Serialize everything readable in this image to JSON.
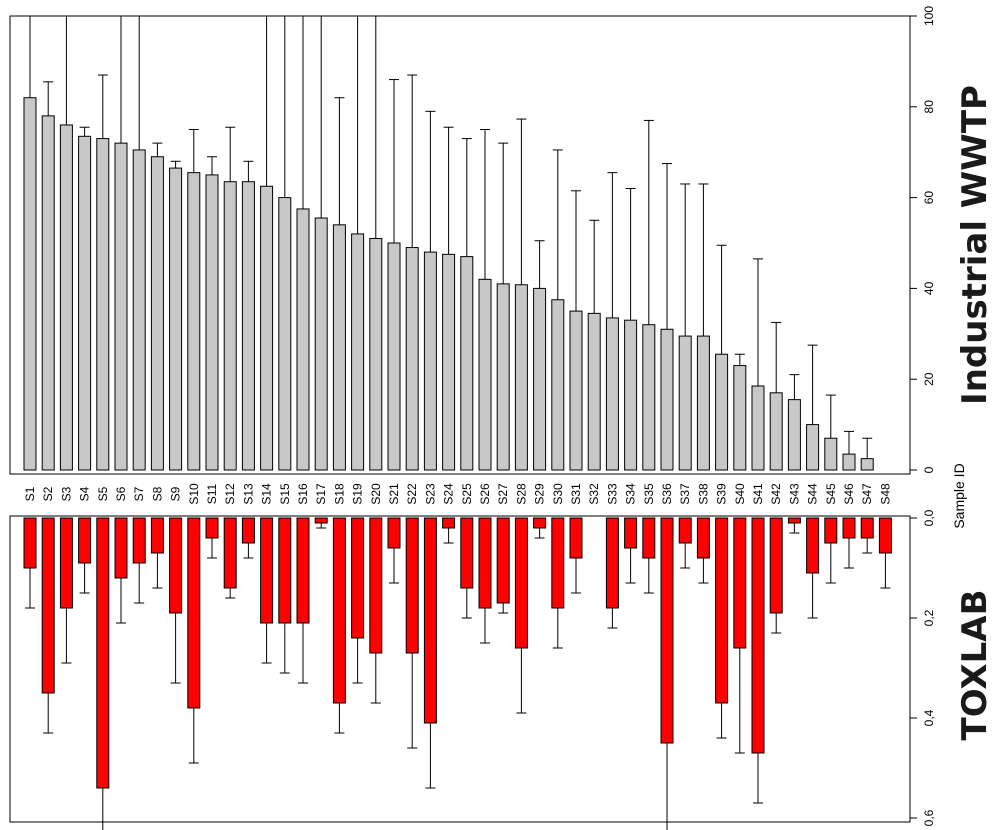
{
  "chart_data": [
    {
      "type": "bar",
      "title": "Industrial WWTP",
      "xlabel": "Sample ID",
      "ylabel": "",
      "ylim": [
        0,
        100
      ],
      "yticks": [
        "0",
        "20",
        "40",
        "60",
        "80",
        "100"
      ],
      "categories": [
        "S1",
        "S2",
        "S3",
        "S4",
        "S5",
        "S6",
        "S7",
        "S8",
        "S9",
        "S10",
        "S11",
        "S12",
        "S13",
        "S14",
        "S15",
        "S16",
        "S17",
        "S18",
        "S19",
        "S20",
        "S21",
        "S22",
        "S23",
        "S24",
        "S25",
        "S26",
        "S27",
        "S28",
        "S29",
        "S30",
        "S31",
        "S32",
        "S33",
        "S34",
        "S35",
        "S36",
        "S37",
        "S38",
        "S39",
        "S40",
        "S41",
        "S42",
        "S43",
        "S44",
        "S45",
        "S46",
        "S47",
        "S48"
      ],
      "values": [
        82,
        78,
        76,
        73.5,
        73,
        72,
        70.5,
        69,
        66.5,
        65.5,
        65,
        63.5,
        63.5,
        62.5,
        60,
        57.5,
        55.5,
        54,
        52,
        51,
        50,
        49,
        48,
        47.5,
        47,
        42,
        41,
        40.8,
        40,
        37.5,
        35,
        34.5,
        33.5,
        33,
        32,
        31,
        29.5,
        29.5,
        25.5,
        23,
        18.5,
        17,
        15.5,
        10,
        7,
        3.5,
        2.5,
        0
      ],
      "error": [
        38,
        7.5,
        40,
        2,
        14,
        36,
        40,
        3,
        1.5,
        9.5,
        4,
        12,
        4.5,
        38,
        40,
        43,
        45,
        28,
        48,
        49,
        36,
        38,
        31,
        28,
        26,
        33,
        31,
        36.5,
        10.5,
        33,
        26.5,
        20.5,
        32,
        29,
        45,
        36.5,
        33.5,
        33.5,
        24,
        2.5,
        28,
        15.5,
        5.5,
        17.5,
        9.5,
        5,
        4.5,
        0
      ],
      "bar_color": "#c8c8c8"
    },
    {
      "type": "bar",
      "title": "TOXLAB",
      "xlabel": "",
      "ylabel": "",
      "ylim": [
        0,
        0.7
      ],
      "yticks": [
        "0,0",
        "0,2",
        "0,4",
        "0,6"
      ],
      "categories": [
        "S1",
        "S2",
        "S3",
        "S4",
        "S5",
        "S6",
        "S7",
        "S8",
        "S9",
        "S10",
        "S11",
        "S12",
        "S13",
        "S14",
        "S15",
        "S16",
        "S17",
        "S18",
        "S19",
        "S20",
        "S21",
        "S22",
        "S23",
        "S24",
        "S25",
        "S26",
        "S27",
        "S28",
        "S29",
        "S30",
        "S31",
        "S32",
        "S33",
        "S34",
        "S35",
        "S36",
        "S37",
        "S38",
        "S39",
        "S40",
        "S41",
        "S42",
        "S43",
        "S44",
        "S45",
        "S46",
        "S47",
        "S48"
      ],
      "values": [
        0.1,
        0.35,
        0.18,
        0.09,
        0.54,
        0.12,
        0.09,
        0.07,
        0.19,
        0.38,
        0.04,
        0.14,
        0.05,
        0.21,
        0.21,
        0.21,
        0.01,
        0.37,
        0.24,
        0.27,
        0.06,
        0.27,
        0.41,
        0.02,
        0.14,
        0.18,
        0.17,
        0.26,
        0.02,
        0.18,
        0.08,
        0.0,
        0.18,
        0.06,
        0.08,
        0.45,
        0.05,
        0.08,
        0.37,
        0.26,
        0.47,
        0.19,
        0.01,
        0.11,
        0.05,
        0.04,
        0.04,
        0.07
      ],
      "error": [
        0.08,
        0.08,
        0.11,
        0.06,
        0.1,
        0.09,
        0.08,
        0.07,
        0.14,
        0.11,
        0.04,
        0.02,
        0.03,
        0.08,
        0.1,
        0.12,
        0.01,
        0.06,
        0.09,
        0.1,
        0.07,
        0.19,
        0.13,
        0.03,
        0.06,
        0.07,
        0.02,
        0.13,
        0.02,
        0.08,
        0.07,
        0.0,
        0.04,
        0.07,
        0.07,
        0.18,
        0.05,
        0.05,
        0.07,
        0.21,
        0.1,
        0.04,
        0.02,
        0.09,
        0.08,
        0.06,
        0.03,
        0.07
      ],
      "bar_color": "#ff0000"
    }
  ]
}
